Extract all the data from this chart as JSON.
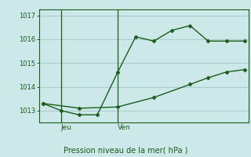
{
  "background_color": "#cce8e8",
  "grid_color": "#aacece",
  "line_color": "#1a5c1a",
  "marker_color": "#1a5c1a",
  "xlabel": "Pression niveau de la mer( hPa )",
  "ylim": [
    1012.5,
    1017.25
  ],
  "yticks": [
    1013,
    1014,
    1015,
    1016,
    1017
  ],
  "xtick_labels": [
    "Jeu",
    "Ven"
  ],
  "xtick_positions": [
    0.09,
    0.37
  ],
  "line1_x": [
    0.0,
    0.09,
    0.18,
    0.27,
    0.37,
    0.46,
    0.55,
    0.64,
    0.73,
    0.82,
    0.91,
    1.0
  ],
  "line1_y": [
    1013.3,
    1013.0,
    1012.82,
    1012.82,
    1014.6,
    1016.1,
    1015.92,
    1016.37,
    1016.57,
    1015.92,
    1015.92,
    1015.92
  ],
  "line2_x": [
    0.0,
    0.18,
    0.37,
    0.55,
    0.73,
    0.82,
    0.91,
    1.0
  ],
  "line2_y": [
    1013.3,
    1013.1,
    1013.15,
    1013.55,
    1014.1,
    1014.38,
    1014.62,
    1014.72
  ],
  "vline_x": [
    0.09,
    0.37
  ],
  "figsize": [
    3.2,
    2.0
  ],
  "dpi": 100
}
